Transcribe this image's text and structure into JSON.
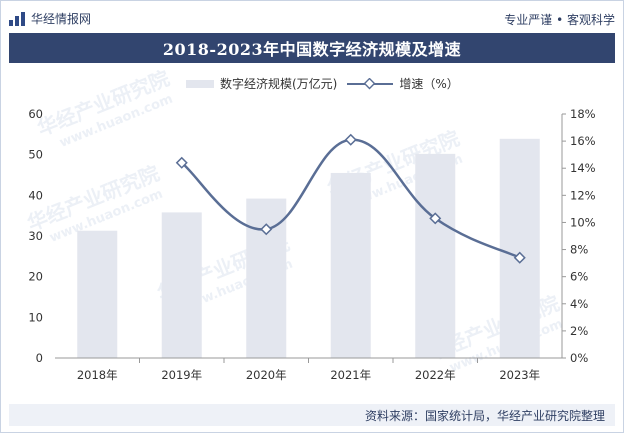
{
  "brand": {
    "name": "华经情报网",
    "motto": "专业严谨 • 客观科学"
  },
  "title": "2018-2023年中国数字经济规模及增速",
  "legend": {
    "bar_label": "数字经济规模(万亿元)",
    "line_label": "增速（%）"
  },
  "source": "资料来源：国家统计局，华经产业研究院整理",
  "watermark": {
    "cn": "华经产业研究院",
    "en": "www.huaon.com"
  },
  "colors": {
    "bar": "#e3e6ee",
    "line": "#5a6e95",
    "title_band": "#32456f"
  },
  "chart_data": {
    "type": "bar",
    "categories": [
      "2018年",
      "2019年",
      "2020年",
      "2021年",
      "2022年",
      "2023年"
    ],
    "series": [
      {
        "name": "数字经济规模(万亿元)",
        "type": "bar",
        "axis": "left",
        "values": [
          31.3,
          35.8,
          39.2,
          45.5,
          50.2,
          53.9
        ]
      },
      {
        "name": "增速（%）",
        "type": "line",
        "axis": "right",
        "values": [
          null,
          14.4,
          9.5,
          16.1,
          10.3,
          7.4
        ]
      }
    ],
    "y_left": {
      "ylim": [
        0,
        60
      ],
      "ticks": [
        "0",
        "10",
        "20",
        "30",
        "40",
        "50",
        "60"
      ]
    },
    "y_right": {
      "ylim": [
        0,
        18
      ],
      "ticks": [
        "0%",
        "2%",
        "4%",
        "6%",
        "8%",
        "10%",
        "12%",
        "14%",
        "16%",
        "18%"
      ]
    },
    "grid": false,
    "legend_position": "top"
  }
}
